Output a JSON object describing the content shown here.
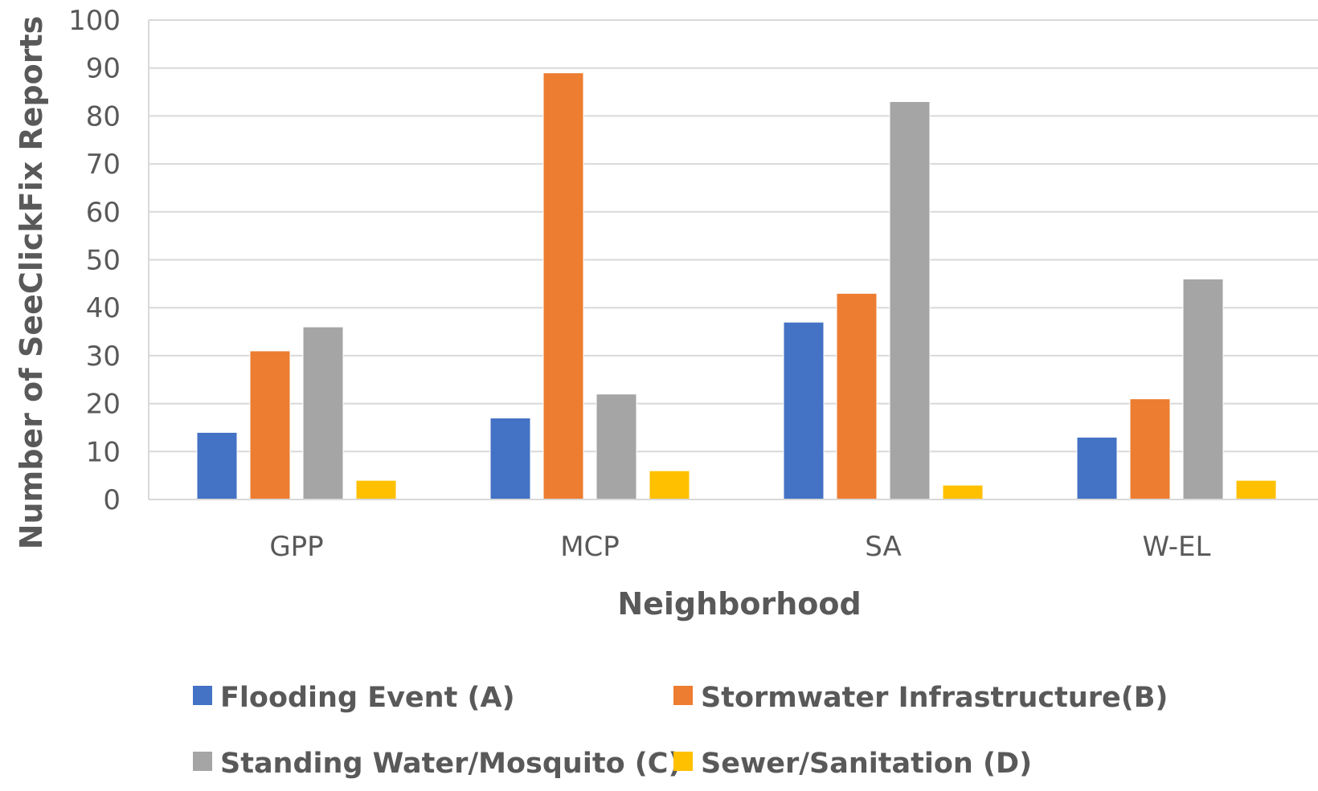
{
  "chart_data": {
    "type": "bar",
    "title": "",
    "xlabel": "Neighborhood",
    "ylabel": "Number of SeeClickFix Reports",
    "categories": [
      "GPP",
      "MCP",
      "SA",
      "W-EL"
    ],
    "ylim": [
      0,
      100
    ],
    "yticks": [
      0,
      10,
      20,
      30,
      40,
      50,
      60,
      70,
      80,
      90,
      100
    ],
    "grid": true,
    "legend_position": "bottom",
    "series": [
      {
        "name": "Flooding Event (A)",
        "color": "#4472C4",
        "values": [
          14,
          17,
          37,
          13
        ]
      },
      {
        "name": "Stormwater Infrastructure(B)",
        "color": "#ED7D31",
        "values": [
          31,
          89,
          43,
          21
        ]
      },
      {
        "name": "Standing Water/Mosquito (C)",
        "color": "#A5A5A5",
        "values": [
          36,
          22,
          83,
          46
        ]
      },
      {
        "name": "Sewer/Sanitation (D)",
        "color": "#FFC000",
        "values": [
          4,
          6,
          3,
          4
        ]
      }
    ]
  }
}
